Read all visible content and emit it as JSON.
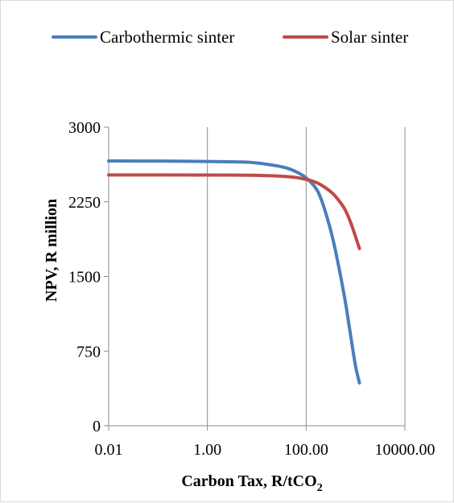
{
  "chart_data": {
    "type": "line",
    "xlabel": "Carbon Tax, R/tCO",
    "xlabel_sub": "2",
    "ylabel": "NPV, R million",
    "x_scale": "log",
    "xlim": [
      0.01,
      10000
    ],
    "ylim": [
      0,
      3000
    ],
    "x_ticks": [
      0.01,
      1,
      100,
      10000
    ],
    "x_tick_labels": [
      "0.01",
      "1.00",
      "100.00",
      "10000.00"
    ],
    "y_ticks": [
      0,
      750,
      1500,
      2250,
      3000
    ],
    "y_tick_labels": [
      "0",
      "750",
      "1500",
      "2250",
      "3000"
    ],
    "grid": "vertical",
    "legend_position": "top",
    "series": [
      {
        "name": "Carbothermic sinter",
        "color": "#4a7ebb",
        "x": [
          0.01,
          0.1,
          1,
          5,
          10,
          20,
          40,
          70,
          100,
          150,
          200,
          300,
          400,
          600,
          800,
          1000,
          1200
        ],
        "y": [
          2660,
          2659,
          2655,
          2650,
          2640,
          2620,
          2590,
          2540,
          2490,
          2400,
          2280,
          2000,
          1740,
          1290,
          900,
          600,
          430
        ]
      },
      {
        "name": "Solar sinter",
        "color": "#be4b48",
        "x": [
          0.01,
          0.1,
          1,
          10,
          50,
          100,
          150,
          200,
          300,
          400,
          600,
          800,
          1000,
          1200
        ],
        "y": [
          2520,
          2520,
          2519,
          2516,
          2500,
          2475,
          2450,
          2420,
          2360,
          2300,
          2180,
          2040,
          1900,
          1780
        ]
      }
    ]
  }
}
